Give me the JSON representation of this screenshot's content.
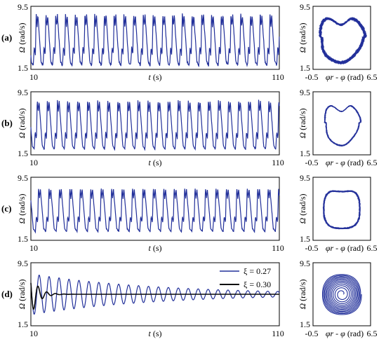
{
  "figure": {
    "colors": {
      "series_a": "#22309a",
      "series_b": "#0a0a0a",
      "frame": "#000000"
    }
  },
  "chart_data": [
    {
      "panel": "(a)",
      "type": "line",
      "xlabel": "t (s)",
      "ylabel": "Ω (rad/s)",
      "xlim": [
        10,
        110
      ],
      "ylim": [
        1.5,
        9.5
      ],
      "x_ticks": [
        "10",
        "110"
      ],
      "y_ticks": [
        "1.5",
        "9.5"
      ],
      "series": [
        {
          "period": 3.92,
          "min": 2.0,
          "max": 8.6,
          "peak_spread": 0.7,
          "shape": "sawtooth-double-peak"
        }
      ]
    },
    {
      "panel": "(a)",
      "type": "scatter",
      "xlabel": "φr - φ (rad)",
      "ylabel": "Ω (rad/s)",
      "xlim": [
        -0.5,
        6.5
      ],
      "ylim": [
        1.5,
        9.5
      ],
      "x_ticks": [
        "-0.5",
        "6.5"
      ],
      "y_ticks": [
        "1.5",
        "9.5"
      ],
      "orbit": {
        "center": [
          2.9,
          5.6
        ],
        "rx": 2.75,
        "ry": 3.1,
        "loops": 10,
        "spread": 0.1,
        "shape": "heart"
      }
    },
    {
      "panel": "(b)",
      "type": "line",
      "xlabel": "t (s)",
      "ylabel": "Ω (rad/s)",
      "xlim": [
        10,
        110
      ],
      "ylim": [
        1.5,
        9.5
      ],
      "x_ticks": [
        "10",
        "110"
      ],
      "y_ticks": [
        "1.5",
        "9.5"
      ],
      "series": [
        {
          "period": 4.05,
          "min": 2.2,
          "max": 8.5,
          "peak_spread": 0.3,
          "shape": "sawtooth-double-peak"
        }
      ]
    },
    {
      "panel": "(b)",
      "type": "scatter",
      "xlabel": "φr - φ (rad)",
      "ylabel": "Ω (rad/s)",
      "xlim": [
        -0.5,
        6.5
      ],
      "ylim": [
        1.5,
        9.5
      ],
      "x_ticks": [
        "-0.5",
        "6.5"
      ],
      "y_ticks": [
        "1.5",
        "9.5"
      ],
      "orbit": {
        "center": [
          2.95,
          5.6
        ],
        "rx": 2.2,
        "ry": 2.8,
        "loops": 4,
        "spread": 0.05,
        "shape": "heart"
      }
    },
    {
      "panel": "(c)",
      "type": "line",
      "xlabel": "t (s)",
      "ylabel": "Ω (rad/s)",
      "xlim": [
        10,
        110
      ],
      "ylim": [
        1.5,
        9.5
      ],
      "x_ticks": [
        "10",
        "110"
      ],
      "y_ticks": [
        "1.5",
        "9.5"
      ],
      "series": [
        {
          "period": 4.2,
          "min": 2.6,
          "max": 8.2,
          "peak_spread": 0.3,
          "shape": "sawtooth-double-peak"
        }
      ]
    },
    {
      "panel": "(c)",
      "type": "scatter",
      "xlabel": "φr - φ (rad)",
      "ylabel": "Ω (rad/s)",
      "xlim": [
        -0.5,
        6.5
      ],
      "ylim": [
        1.5,
        9.5
      ],
      "x_ticks": [
        "-0.5",
        "6.5"
      ],
      "y_ticks": [
        "1.5",
        "9.5"
      ],
      "orbit": {
        "center": [
          3.0,
          5.5
        ],
        "rx": 2.2,
        "ry": 2.5,
        "loops": 5,
        "spread": 0.06,
        "shape": "squarish"
      }
    },
    {
      "panel": "(d)",
      "type": "line",
      "xlabel": "t (s)",
      "ylabel": "Ω (rad/s)",
      "xlim": [
        10,
        110
      ],
      "ylim": [
        1.5,
        9.5
      ],
      "x_ticks": [
        "10",
        "110"
      ],
      "y_ticks": [
        "1.5",
        "9.5"
      ],
      "legend": {
        "placement": "top-right",
        "entries": [
          "ξ = 0.27",
          "ξ = 0.30"
        ]
      },
      "series": [
        {
          "name": "ξ = 0.27",
          "period": 4.0,
          "mean": 5.5,
          "amp_start": 2.6,
          "damping": 0.02,
          "final": 5.5
        },
        {
          "name": "ξ = 0.30",
          "period": 3.5,
          "mean": 5.5,
          "amp_start": 2.8,
          "damping": 0.35,
          "final": 5.5
        }
      ]
    },
    {
      "panel": "(d)",
      "type": "scatter",
      "xlabel": "φr - φ (rad)",
      "ylabel": "Ω (rad/s)",
      "xlim": [
        -0.5,
        6.5
      ],
      "ylim": [
        1.5,
        9.5
      ],
      "x_ticks": [
        "-0.5",
        "6.5"
      ],
      "y_ticks": [
        "1.5",
        "9.5"
      ],
      "orbit": {
        "center": [
          3.0,
          5.5
        ],
        "rx": 2.4,
        "ry": 2.6,
        "loops": 12,
        "spread": 0.0,
        "shape": "spiral"
      }
    }
  ]
}
